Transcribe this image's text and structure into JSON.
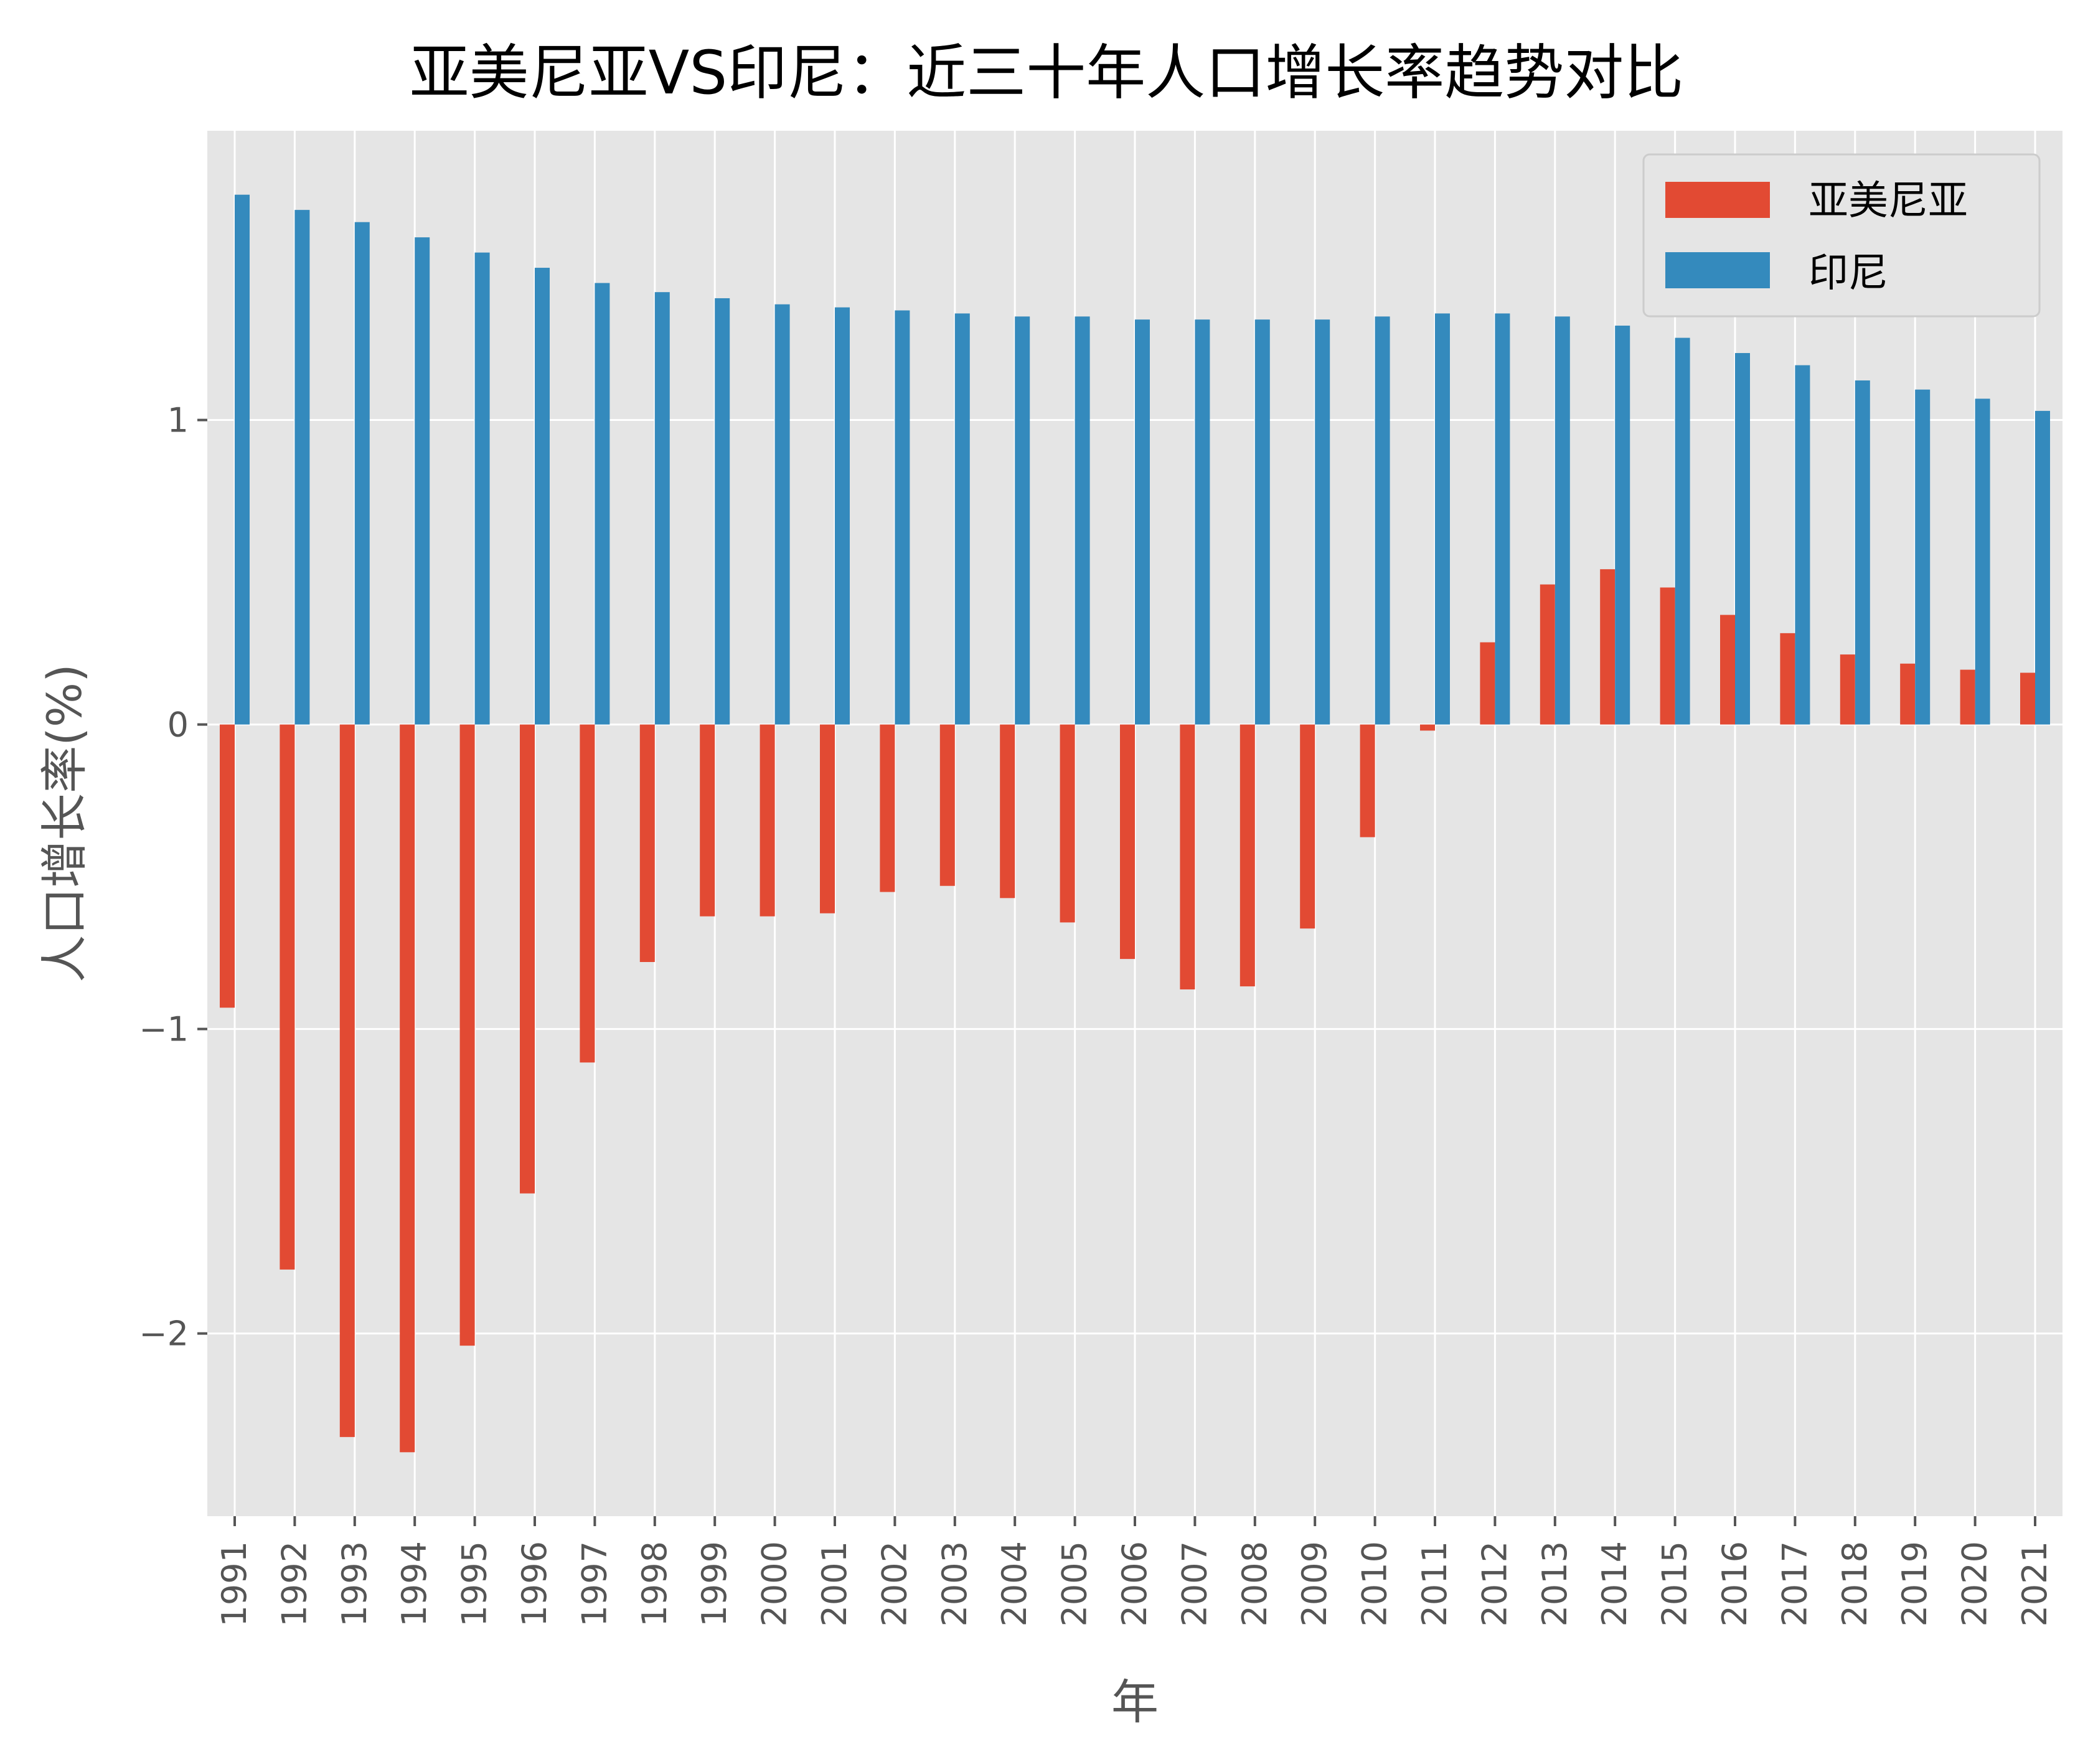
{
  "chart_data": {
    "type": "bar",
    "title": "亚美尼亚VS印尼：近三十年人口增长率趋势对比",
    "xlabel": "年",
    "ylabel": "人口增长率(%)",
    "categories": [
      "1991",
      "1992",
      "1993",
      "1994",
      "1995",
      "1996",
      "1997",
      "1998",
      "1999",
      "2000",
      "2001",
      "2002",
      "2003",
      "2004",
      "2005",
      "2006",
      "2007",
      "2008",
      "2009",
      "2010",
      "2011",
      "2012",
      "2013",
      "2014",
      "2015",
      "2016",
      "2017",
      "2018",
      "2019",
      "2020",
      "2021"
    ],
    "series": [
      {
        "name": "亚美尼亚",
        "color": "#e24a33",
        "values": [
          -0.93,
          -1.79,
          -2.34,
          -2.39,
          -2.04,
          -1.54,
          -1.11,
          -0.78,
          -0.63,
          -0.63,
          -0.62,
          -0.55,
          -0.53,
          -0.57,
          -0.65,
          -0.77,
          -0.87,
          -0.86,
          -0.67,
          -0.37,
          -0.02,
          0.27,
          0.46,
          0.51,
          0.45,
          0.36,
          0.3,
          0.23,
          0.2,
          0.18,
          0.17
        ]
      },
      {
        "name": "印尼",
        "color": "#348abd",
        "values": [
          1.74,
          1.69,
          1.65,
          1.6,
          1.55,
          1.5,
          1.45,
          1.42,
          1.4,
          1.38,
          1.37,
          1.36,
          1.35,
          1.34,
          1.34,
          1.33,
          1.33,
          1.33,
          1.33,
          1.34,
          1.35,
          1.35,
          1.34,
          1.31,
          1.27,
          1.22,
          1.18,
          1.13,
          1.1,
          1.07,
          1.03
        ]
      }
    ],
    "ylim": [
      -2.6,
      1.95
    ],
    "yticks": [
      -2,
      -1,
      0,
      1
    ],
    "ytick_labels": [
      "−2",
      "−1",
      "0",
      "1"
    ],
    "grid": true,
    "legend_position": "top-right",
    "style": {
      "plot_background": "#e5e5e5",
      "grid_color": "#ffffff",
      "tick_color": "#555555"
    }
  }
}
